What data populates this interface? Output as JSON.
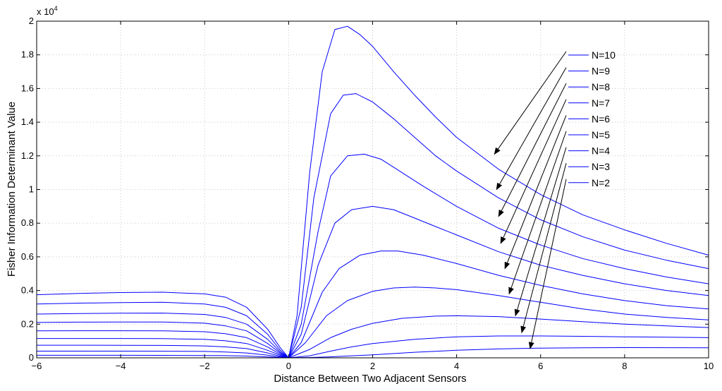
{
  "chart_data": {
    "type": "line",
    "title": "",
    "xlabel": "Distance Between Two Adjacent Sensors",
    "ylabel": "Fisher Information Determinant Value",
    "xlim": [
      -6,
      10
    ],
    "ylim": [
      0,
      20000
    ],
    "x_ticks": [
      -6,
      -4,
      -2,
      0,
      2,
      4,
      6,
      8,
      10
    ],
    "y_ticks": [
      0,
      2000,
      4000,
      6000,
      8000,
      10000,
      12000,
      14000,
      16000,
      18000,
      20000
    ],
    "y_tick_labels": [
      "0",
      "0.2",
      "0.4",
      "0.6",
      "0.8",
      "1",
      "1.2",
      "1.4",
      "1.6",
      "1.8",
      "2"
    ],
    "y_multiplier": "x 10",
    "y_multiplier_exp": "4",
    "grid": true,
    "legend_position": "top-right",
    "line_color": "#0000ff",
    "series": [
      {
        "name": "N=10",
        "x": [
          -6,
          -5,
          -4,
          -3,
          -2,
          -1.5,
          -1,
          -0.5,
          -0.2,
          0,
          0.2,
          0.5,
          0.8,
          1.1,
          1.4,
          1.7,
          2,
          2.5,
          3,
          3.5,
          4,
          5,
          6,
          7,
          8,
          9,
          10
        ],
        "y": [
          3750,
          3830,
          3880,
          3900,
          3800,
          3600,
          3000,
          1700,
          600,
          0,
          2500,
          11000,
          17000,
          19500,
          19700,
          19200,
          18500,
          17000,
          15600,
          14300,
          13100,
          11200,
          9700,
          8500,
          7600,
          6800,
          6100
        ],
        "arrow_x": 4.9,
        "arrow_y": 12100
      },
      {
        "name": "N=9",
        "x": [
          -6,
          -5,
          -4,
          -3,
          -2,
          -1.5,
          -1,
          -0.5,
          -0.2,
          0,
          0.3,
          0.6,
          1,
          1.3,
          1.6,
          2,
          2.5,
          3,
          3.5,
          4,
          5,
          6,
          7,
          8,
          9,
          10
        ],
        "y": [
          3200,
          3250,
          3280,
          3300,
          3200,
          3000,
          2500,
          1400,
          450,
          0,
          3000,
          9500,
          14500,
          15600,
          15700,
          15200,
          14200,
          13100,
          12000,
          11100,
          9500,
          8200,
          7200,
          6400,
          5800,
          5300
        ],
        "arrow_x": 4.95,
        "arrow_y": 10000
      },
      {
        "name": "N=8",
        "x": [
          -6,
          -5,
          -4,
          -3,
          -2,
          -1.5,
          -1,
          -0.5,
          -0.2,
          0,
          0.3,
          0.7,
          1,
          1.4,
          1.8,
          2.2,
          2.7,
          3.2,
          4,
          5,
          6,
          7,
          8,
          9,
          10
        ],
        "y": [
          2600,
          2630,
          2650,
          2660,
          2580,
          2400,
          2000,
          1100,
          350,
          0,
          2000,
          7500,
          10800,
          12000,
          12100,
          11800,
          11000,
          10200,
          9000,
          7700,
          6700,
          5900,
          5300,
          4800,
          4400
        ],
        "arrow_x": 5.0,
        "arrow_y": 8400
      },
      {
        "name": "N=7",
        "x": [
          -6,
          -5,
          -4,
          -3,
          -2,
          -1.5,
          -1,
          -0.5,
          -0.2,
          0,
          0.3,
          0.7,
          1.1,
          1.5,
          2,
          2.5,
          3,
          3.5,
          4,
          5,
          6,
          7,
          8,
          9,
          10
        ],
        "y": [
          2100,
          2120,
          2130,
          2130,
          2060,
          1900,
          1600,
          850,
          280,
          0,
          1400,
          5500,
          8000,
          8800,
          9000,
          8800,
          8300,
          7800,
          7300,
          6300,
          5500,
          4900,
          4400,
          4000,
          3700
        ],
        "arrow_x": 5.05,
        "arrow_y": 6800
      },
      {
        "name": "N=6",
        "x": [
          -6,
          -5,
          -4,
          -3,
          -2,
          -1.5,
          -1,
          -0.5,
          -0.2,
          0,
          0.3,
          0.8,
          1.2,
          1.7,
          2.2,
          2.6,
          3.2,
          4,
          5,
          6,
          7,
          8,
          9,
          10
        ],
        "y": [
          1600,
          1610,
          1610,
          1600,
          1550,
          1430,
          1200,
          640,
          210,
          0,
          900,
          3900,
          5300,
          6100,
          6350,
          6350,
          6100,
          5600,
          4900,
          4300,
          3800,
          3400,
          3100,
          2900
        ],
        "arrow_x": 5.15,
        "arrow_y": 5300
      },
      {
        "name": "N=5",
        "x": [
          -6,
          -5,
          -4,
          -3,
          -2,
          -1.5,
          -1,
          -0.5,
          -0.2,
          0,
          0.4,
          0.9,
          1.4,
          2,
          2.5,
          3,
          3.5,
          4,
          5,
          6,
          7,
          8,
          9,
          10
        ],
        "y": [
          1150,
          1150,
          1150,
          1140,
          1100,
          1010,
          850,
          450,
          150,
          0,
          900,
          2500,
          3400,
          3950,
          4150,
          4200,
          4150,
          4050,
          3700,
          3300,
          2900,
          2600,
          2400,
          2250
        ],
        "arrow_x": 5.25,
        "arrow_y": 3800
      },
      {
        "name": "N=4",
        "x": [
          -6,
          -5,
          -4,
          -3,
          -2,
          -1.5,
          -1,
          -0.5,
          -0.2,
          0,
          0.5,
          1,
          1.5,
          2,
          2.7,
          3.5,
          4,
          5,
          6,
          7,
          8,
          9,
          10
        ],
        "y": [
          750,
          750,
          745,
          740,
          710,
          650,
          550,
          290,
          95,
          0,
          500,
          1200,
          1700,
          2050,
          2350,
          2480,
          2500,
          2450,
          2300,
          2150,
          2000,
          1900,
          1800
        ],
        "arrow_x": 5.4,
        "arrow_y": 2500
      },
      {
        "name": "N=3",
        "x": [
          -6,
          -5,
          -4,
          -3,
          -2,
          -1.5,
          -1,
          -0.5,
          -0.2,
          0,
          0.5,
          1,
          1.5,
          2,
          3,
          4,
          5,
          6,
          7,
          8,
          9,
          10
        ],
        "y": [
          400,
          400,
          398,
          395,
          380,
          350,
          290,
          155,
          50,
          0,
          120,
          400,
          650,
          850,
          1100,
          1250,
          1300,
          1300,
          1280,
          1250,
          1230,
          1200
        ],
        "arrow_x": 5.55,
        "arrow_y": 1500
      },
      {
        "name": "N=2",
        "x": [
          -6,
          -5,
          -4,
          -3,
          -2,
          -1.5,
          -1,
          -0.5,
          -0.2,
          0,
          0.5,
          1,
          2,
          3,
          4,
          5,
          6,
          7,
          8,
          9,
          10
        ],
        "y": [
          150,
          150,
          149,
          147,
          140,
          128,
          105,
          55,
          18,
          0,
          20,
          60,
          180,
          330,
          450,
          530,
          580,
          600,
          610,
          605,
          600
        ],
        "arrow_x": 5.75,
        "arrow_y": 550
      }
    ]
  }
}
